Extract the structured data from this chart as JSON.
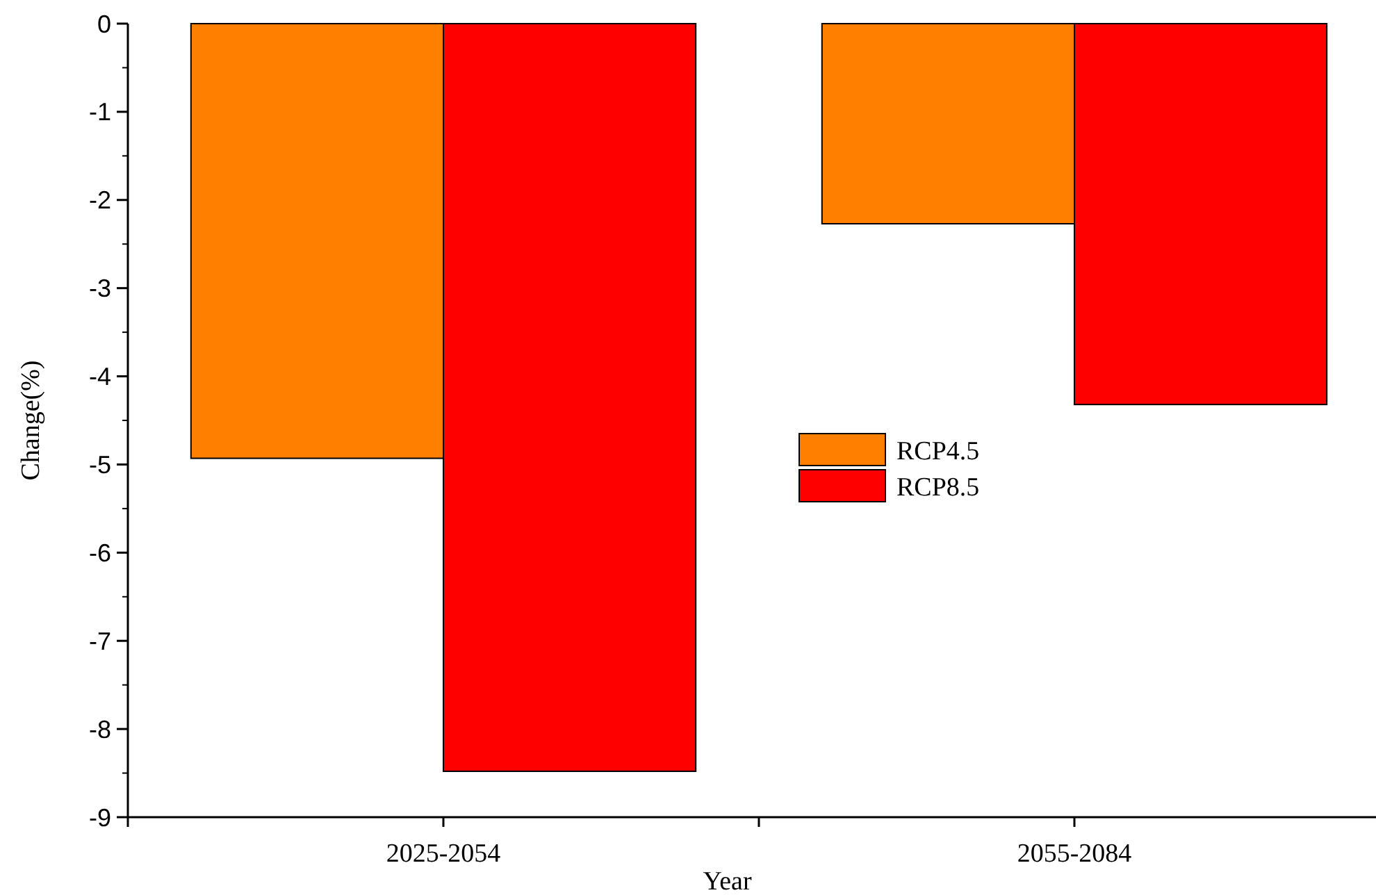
{
  "chart_data": {
    "type": "bar",
    "xlabel": "Year",
    "ylabel": "Change(%)",
    "categories": [
      "2025-2054",
      "2055-2084"
    ],
    "series": [
      {
        "name": "RCP4.5",
        "color": "#ff8000",
        "values": [
          -4.93,
          -2.27
        ]
      },
      {
        "name": "RCP8.5",
        "color": "#ff0000",
        "values": [
          -8.48,
          -4.32
        ]
      }
    ],
    "ylim": [
      -9,
      0
    ],
    "yticks": [
      -9,
      -8,
      -7,
      -6,
      -5,
      -4,
      -3,
      -2,
      -1,
      0
    ],
    "legend": "right",
    "grid": false
  }
}
